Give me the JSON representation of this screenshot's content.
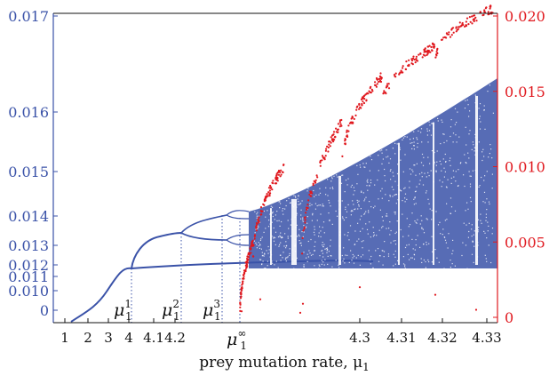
{
  "chart_data": {
    "type": "scatter",
    "xlabel": "prey mutation rate, μ",
    "xlabel_sub": "1",
    "x_ticks": [
      "1",
      "2",
      "3",
      "4",
      "4.1",
      "4.2",
      "4.3",
      "4.31",
      "4.32",
      "4.33"
    ],
    "y_left_ticks": [
      "0",
      "0.010",
      "0.011",
      "0.012",
      "0.013",
      "0.014",
      "0.015",
      "0.016",
      "0.017"
    ],
    "y_right_ticks": [
      "0",
      "0.005",
      "0.010",
      "0.015",
      "0.020"
    ],
    "y_right_range": [
      0,
      0.02
    ],
    "annotations": [
      {
        "label": "μ",
        "sub": "1",
        "sup": "1",
        "x_tick_after": "4"
      },
      {
        "label": "μ",
        "sub": "1",
        "sup": "2",
        "x_tick_after": "4.2"
      },
      {
        "label": "μ",
        "sub": "1",
        "sup": "3",
        "between": [
          "4.2",
          "4.3"
        ]
      },
      {
        "label": "μ",
        "sub": "1",
        "sup": "∞",
        "between": [
          "4.2",
          "4.3"
        ]
      }
    ],
    "series": [
      {
        "axis": "left",
        "description_key": "bifurcation",
        "color": "#3a52a8"
      },
      {
        "axis": "right",
        "description_key": "lyapunov",
        "color": "#e0191f"
      }
    ],
    "colors": {
      "left_axis": "#3a52a8",
      "right_axis": "#e0191f",
      "frame": "#111111"
    }
  }
}
